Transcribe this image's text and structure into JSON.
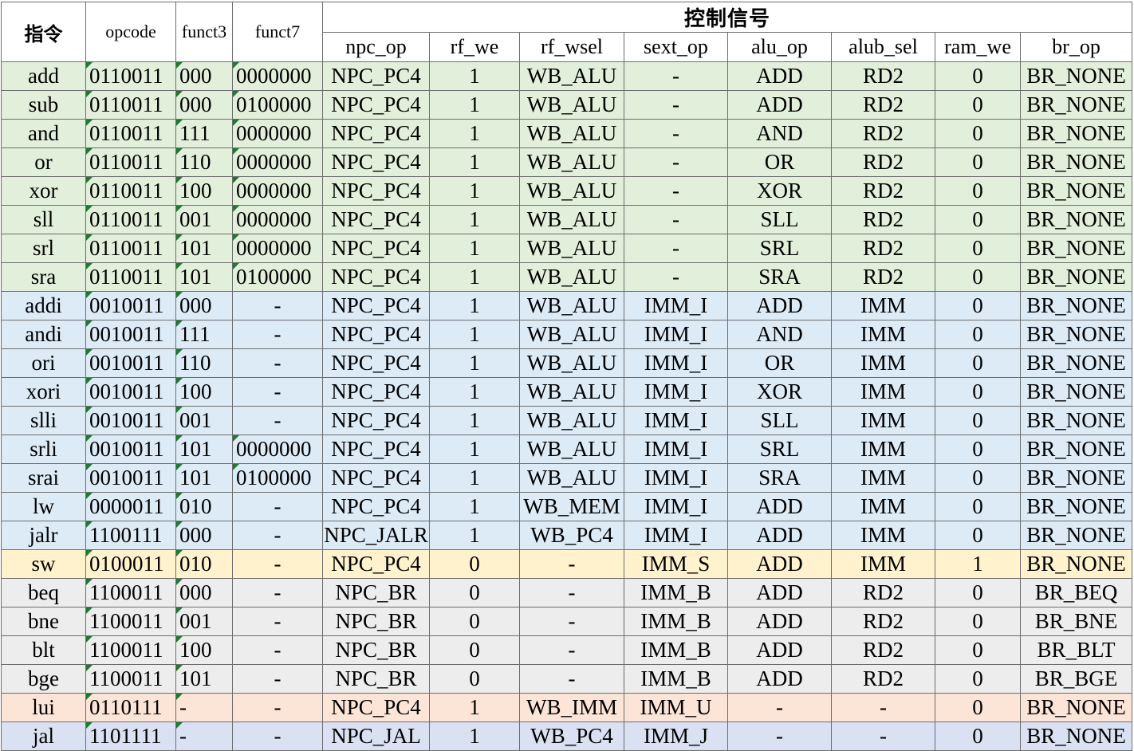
{
  "header": {
    "instr": "指令",
    "opcode": "opcode",
    "funct3": "funct3",
    "funct7": "funct7",
    "group": "控制信号",
    "signals": [
      "npc_op",
      "rf_we",
      "rf_wsel",
      "sext_op",
      "alu_op",
      "alub_sel",
      "ram_we",
      "br_op"
    ]
  },
  "group_colors": {
    "r": "#e2efda",
    "i": "#ddebf7",
    "s": "#fff2cc",
    "b": "#ededed",
    "u": "#fce4d6",
    "j": "#d9e1f2"
  },
  "rows": [
    {
      "g": "r",
      "instr": "add",
      "opcode": "0110011",
      "funct3": "000",
      "funct7": "0000000",
      "npc_op": "NPC_PC4",
      "rf_we": "1",
      "rf_wsel": "WB_ALU",
      "sext_op": "-",
      "alu_op": "ADD",
      "alub_sel": "RD2",
      "ram_we": "0",
      "br_op": "BR_NONE"
    },
    {
      "g": "r",
      "instr": "sub",
      "opcode": "0110011",
      "funct3": "000",
      "funct7": "0100000",
      "npc_op": "NPC_PC4",
      "rf_we": "1",
      "rf_wsel": "WB_ALU",
      "sext_op": "-",
      "alu_op": "ADD",
      "alub_sel": "RD2",
      "ram_we": "0",
      "br_op": "BR_NONE"
    },
    {
      "g": "r",
      "instr": "and",
      "opcode": "0110011",
      "funct3": "111",
      "funct7": "0000000",
      "npc_op": "NPC_PC4",
      "rf_we": "1",
      "rf_wsel": "WB_ALU",
      "sext_op": "-",
      "alu_op": "AND",
      "alub_sel": "RD2",
      "ram_we": "0",
      "br_op": "BR_NONE"
    },
    {
      "g": "r",
      "instr": "or",
      "opcode": "0110011",
      "funct3": "110",
      "funct7": "0000000",
      "npc_op": "NPC_PC4",
      "rf_we": "1",
      "rf_wsel": "WB_ALU",
      "sext_op": "-",
      "alu_op": "OR",
      "alub_sel": "RD2",
      "ram_we": "0",
      "br_op": "BR_NONE"
    },
    {
      "g": "r",
      "instr": "xor",
      "opcode": "0110011",
      "funct3": "100",
      "funct7": "0000000",
      "npc_op": "NPC_PC4",
      "rf_we": "1",
      "rf_wsel": "WB_ALU",
      "sext_op": "-",
      "alu_op": "XOR",
      "alub_sel": "RD2",
      "ram_we": "0",
      "br_op": "BR_NONE"
    },
    {
      "g": "r",
      "instr": "sll",
      "opcode": "0110011",
      "funct3": "001",
      "funct7": "0000000",
      "npc_op": "NPC_PC4",
      "rf_we": "1",
      "rf_wsel": "WB_ALU",
      "sext_op": "-",
      "alu_op": "SLL",
      "alub_sel": "RD2",
      "ram_we": "0",
      "br_op": "BR_NONE"
    },
    {
      "g": "r",
      "instr": "srl",
      "opcode": "0110011",
      "funct3": "101",
      "funct7": "0000000",
      "npc_op": "NPC_PC4",
      "rf_we": "1",
      "rf_wsel": "WB_ALU",
      "sext_op": "-",
      "alu_op": "SRL",
      "alub_sel": "RD2",
      "ram_we": "0",
      "br_op": "BR_NONE"
    },
    {
      "g": "r",
      "instr": "sra",
      "opcode": "0110011",
      "funct3": "101",
      "funct7": "0100000",
      "npc_op": "NPC_PC4",
      "rf_we": "1",
      "rf_wsel": "WB_ALU",
      "sext_op": "-",
      "alu_op": "SRA",
      "alub_sel": "RD2",
      "ram_we": "0",
      "br_op": "BR_NONE"
    },
    {
      "g": "i",
      "instr": "addi",
      "opcode": "0010011",
      "funct3": "000",
      "funct7": "-",
      "npc_op": "NPC_PC4",
      "rf_we": "1",
      "rf_wsel": "WB_ALU",
      "sext_op": "IMM_I",
      "alu_op": "ADD",
      "alub_sel": "IMM",
      "ram_we": "0",
      "br_op": "BR_NONE"
    },
    {
      "g": "i",
      "instr": "andi",
      "opcode": "0010011",
      "funct3": "111",
      "funct7": "-",
      "npc_op": "NPC_PC4",
      "rf_we": "1",
      "rf_wsel": "WB_ALU",
      "sext_op": "IMM_I",
      "alu_op": "AND",
      "alub_sel": "IMM",
      "ram_we": "0",
      "br_op": "BR_NONE"
    },
    {
      "g": "i",
      "instr": "ori",
      "opcode": "0010011",
      "funct3": "110",
      "funct7": "-",
      "npc_op": "NPC_PC4",
      "rf_we": "1",
      "rf_wsel": "WB_ALU",
      "sext_op": "IMM_I",
      "alu_op": "OR",
      "alub_sel": "IMM",
      "ram_we": "0",
      "br_op": "BR_NONE"
    },
    {
      "g": "i",
      "instr": "xori",
      "opcode": "0010011",
      "funct3": "100",
      "funct7": "-",
      "npc_op": "NPC_PC4",
      "rf_we": "1",
      "rf_wsel": "WB_ALU",
      "sext_op": "IMM_I",
      "alu_op": "XOR",
      "alub_sel": "IMM",
      "ram_we": "0",
      "br_op": "BR_NONE"
    },
    {
      "g": "i",
      "instr": "slli",
      "opcode": "0010011",
      "funct3": "001",
      "funct7": "-",
      "npc_op": "NPC_PC4",
      "rf_we": "1",
      "rf_wsel": "WB_ALU",
      "sext_op": "IMM_I",
      "alu_op": "SLL",
      "alub_sel": "IMM",
      "ram_we": "0",
      "br_op": "BR_NONE"
    },
    {
      "g": "i",
      "instr": "srli",
      "opcode": "0010011",
      "funct3": "101",
      "funct7": "0000000",
      "npc_op": "NPC_PC4",
      "rf_we": "1",
      "rf_wsel": "WB_ALU",
      "sext_op": "IMM_I",
      "alu_op": "SRL",
      "alub_sel": "IMM",
      "ram_we": "0",
      "br_op": "BR_NONE"
    },
    {
      "g": "i",
      "instr": "srai",
      "opcode": "0010011",
      "funct3": "101",
      "funct7": "0100000",
      "npc_op": "NPC_PC4",
      "rf_we": "1",
      "rf_wsel": "WB_ALU",
      "sext_op": "IMM_I",
      "alu_op": "SRA",
      "alub_sel": "IMM",
      "ram_we": "0",
      "br_op": "BR_NONE"
    },
    {
      "g": "i",
      "instr": "lw",
      "opcode": "0000011",
      "funct3": "010",
      "funct7": "-",
      "npc_op": "NPC_PC4",
      "rf_we": "1",
      "rf_wsel": "WB_MEM",
      "sext_op": "IMM_I",
      "alu_op": "ADD",
      "alub_sel": "IMM",
      "ram_we": "0",
      "br_op": "BR_NONE"
    },
    {
      "g": "i",
      "instr": "jalr",
      "opcode": "1100111",
      "funct3": "000",
      "funct7": "-",
      "npc_op": "NPC_JALR",
      "rf_we": "1",
      "rf_wsel": "WB_PC4",
      "sext_op": "IMM_I",
      "alu_op": "ADD",
      "alub_sel": "IMM",
      "ram_we": "0",
      "br_op": "BR_NONE"
    },
    {
      "g": "s",
      "instr": "sw",
      "opcode": "0100011",
      "funct3": "010",
      "funct7": "-",
      "npc_op": "NPC_PC4",
      "rf_we": "0",
      "rf_wsel": "-",
      "sext_op": "IMM_S",
      "alu_op": "ADD",
      "alub_sel": "IMM",
      "ram_we": "1",
      "br_op": "BR_NONE"
    },
    {
      "g": "b",
      "instr": "beq",
      "opcode": "1100011",
      "funct3": "000",
      "funct7": "-",
      "npc_op": "NPC_BR",
      "rf_we": "0",
      "rf_wsel": "-",
      "sext_op": "IMM_B",
      "alu_op": "ADD",
      "alub_sel": "RD2",
      "ram_we": "0",
      "br_op": "BR_BEQ"
    },
    {
      "g": "b",
      "instr": "bne",
      "opcode": "1100011",
      "funct3": "001",
      "funct7": "-",
      "npc_op": "NPC_BR",
      "rf_we": "0",
      "rf_wsel": "-",
      "sext_op": "IMM_B",
      "alu_op": "ADD",
      "alub_sel": "RD2",
      "ram_we": "0",
      "br_op": "BR_BNE"
    },
    {
      "g": "b",
      "instr": "blt",
      "opcode": "1100011",
      "funct3": "100",
      "funct7": "-",
      "npc_op": "NPC_BR",
      "rf_we": "0",
      "rf_wsel": "-",
      "sext_op": "IMM_B",
      "alu_op": "ADD",
      "alub_sel": "RD2",
      "ram_we": "0",
      "br_op": "BR_BLT"
    },
    {
      "g": "b",
      "instr": "bge",
      "opcode": "1100011",
      "funct3": "101",
      "funct7": "-",
      "npc_op": "NPC_BR",
      "rf_we": "0",
      "rf_wsel": "-",
      "sext_op": "IMM_B",
      "alu_op": "ADD",
      "alub_sel": "RD2",
      "ram_we": "0",
      "br_op": "BR_BGE"
    },
    {
      "g": "u",
      "instr": "lui",
      "opcode": "0110111",
      "funct3": "-",
      "funct7": "-",
      "npc_op": "NPC_PC4",
      "rf_we": "1",
      "rf_wsel": "WB_IMM",
      "sext_op": "IMM_U",
      "alu_op": "-",
      "alub_sel": "-",
      "ram_we": "0",
      "br_op": "BR_NONE"
    },
    {
      "g": "j",
      "instr": "jal",
      "opcode": "1101111",
      "funct3": "-",
      "funct7": "-",
      "npc_op": "NPC_JAL",
      "rf_we": "1",
      "rf_wsel": "WB_PC4",
      "sext_op": "IMM_J",
      "alu_op": "-",
      "alub_sel": "-",
      "ram_we": "0",
      "br_op": "BR_NONE"
    }
  ]
}
